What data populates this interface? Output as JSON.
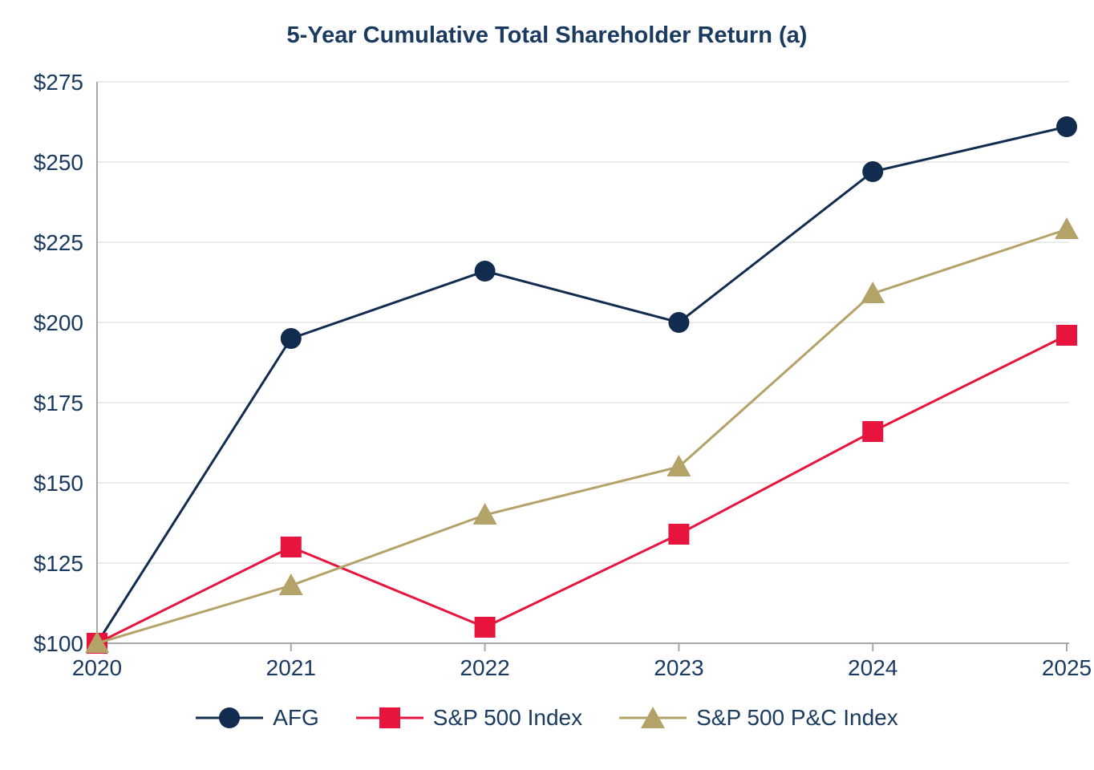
{
  "title": "5-Year Cumulative Total Shareholder Return (a)",
  "colors": {
    "text": "#1B3A60",
    "grid": "#EAEAEA",
    "axis": "#A8A8A8",
    "background": "#FFFFFF",
    "afg": "#122C4F",
    "sp500": "#E7153E",
    "sp500pc": "#B3A369"
  },
  "chart_data": {
    "type": "line",
    "title": "5-Year Cumulative Total Shareholder Return (a)",
    "categories": [
      "2020",
      "2021",
      "2022",
      "2023",
      "2024",
      "2025"
    ],
    "series": [
      {
        "name": "AFG",
        "marker": "circle",
        "color": "#122C4F",
        "values": [
          100,
          195,
          216,
          200,
          247,
          261
        ]
      },
      {
        "name": "S&P 500 Index",
        "marker": "square",
        "color": "#E7153E",
        "values": [
          100,
          130,
          105,
          134,
          166,
          196
        ]
      },
      {
        "name": "S&P 500 P&C Index",
        "marker": "triangle",
        "color": "#B3A369",
        "values": [
          100,
          118,
          140,
          155,
          209,
          229
        ]
      }
    ],
    "xlabel": "",
    "ylabel": "",
    "ylim": [
      100,
      275
    ],
    "ytick_step": 25,
    "ytick_labels": [
      "$100",
      "$125",
      "$150",
      "$175",
      "$200",
      "$225",
      "$250",
      "$275"
    ],
    "xtick_labels": [
      "2020",
      "2021",
      "2022",
      "2023",
      "2024",
      "2025"
    ],
    "grid": true,
    "legend_position": "bottom"
  }
}
